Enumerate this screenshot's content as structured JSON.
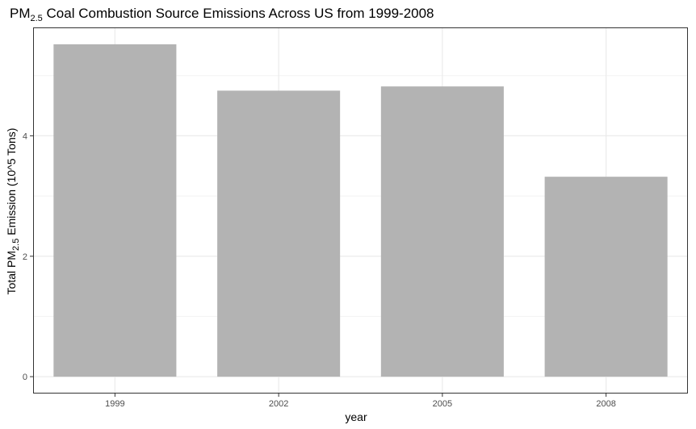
{
  "chart_data": {
    "type": "bar",
    "title": {
      "prefix": "PM",
      "subscript": "2.5",
      "suffix": " Coal Combustion Source Emissions Across US from 1999-2008"
    },
    "xlabel": "year",
    "ylabel": {
      "prefix": "Total PM",
      "subscript": "2.5",
      "suffix": " Emission (10^5 Tons)"
    },
    "categories": [
      "1999",
      "2002",
      "2005",
      "2008"
    ],
    "values": [
      5.52,
      4.75,
      4.82,
      3.32
    ],
    "ylim": [
      -0.28,
      5.8
    ],
    "yticks": [
      0,
      2,
      4
    ],
    "grid": true,
    "bar_color": "#b3b3b3",
    "panel_border_color": "#333333",
    "grid_major_color": "#ebebeb",
    "grid_minor_color": "#f3f3f3"
  }
}
